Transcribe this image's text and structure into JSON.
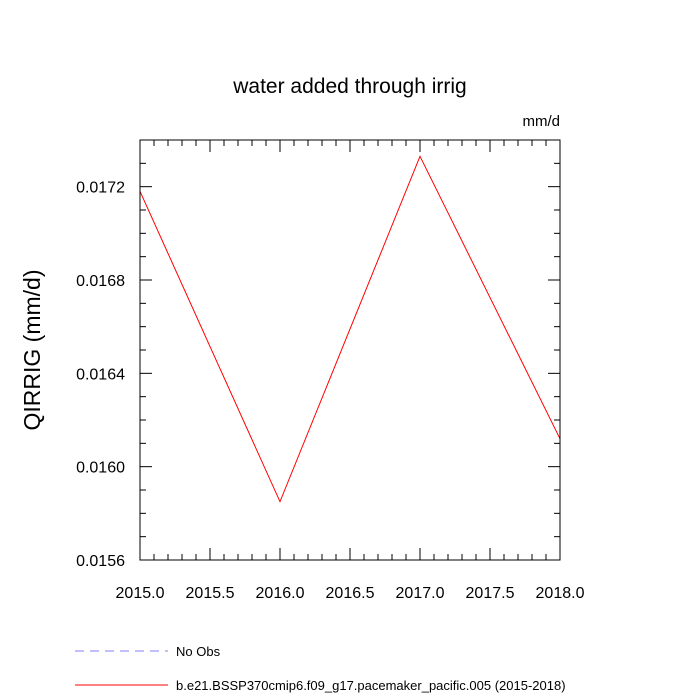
{
  "chart_data": {
    "type": "line",
    "title": "water added through irrig",
    "units_label": "mm/d",
    "xlabel": "",
    "ylabel": "QIRRIG  (mm/d)",
    "xlim": [
      2015.0,
      2018.0
    ],
    "ylim": [
      0.0156,
      0.0174
    ],
    "x_ticks": [
      "2015.0",
      "2015.5",
      "2016.0",
      "2016.5",
      "2017.0",
      "2017.5",
      "2018.0"
    ],
    "y_ticks": [
      "0.0156",
      "0.0160",
      "0.0164",
      "0.0168",
      "0.0172"
    ],
    "series": [
      {
        "name": "b.e21.BSSP370cmip6.f09_g17.pacemaker_pacific.005 (2015-2018)",
        "color": "#ff0000",
        "style": "solid",
        "x": [
          2015.0,
          2016.0,
          2017.0,
          2018.0
        ],
        "y": [
          0.01718,
          0.01585,
          0.01733,
          0.01612
        ]
      },
      {
        "name": "No Obs",
        "color": "#8080ff",
        "style": "dashed",
        "x": [],
        "y": []
      }
    ],
    "legend_position": "bottom-left",
    "grid": false
  }
}
